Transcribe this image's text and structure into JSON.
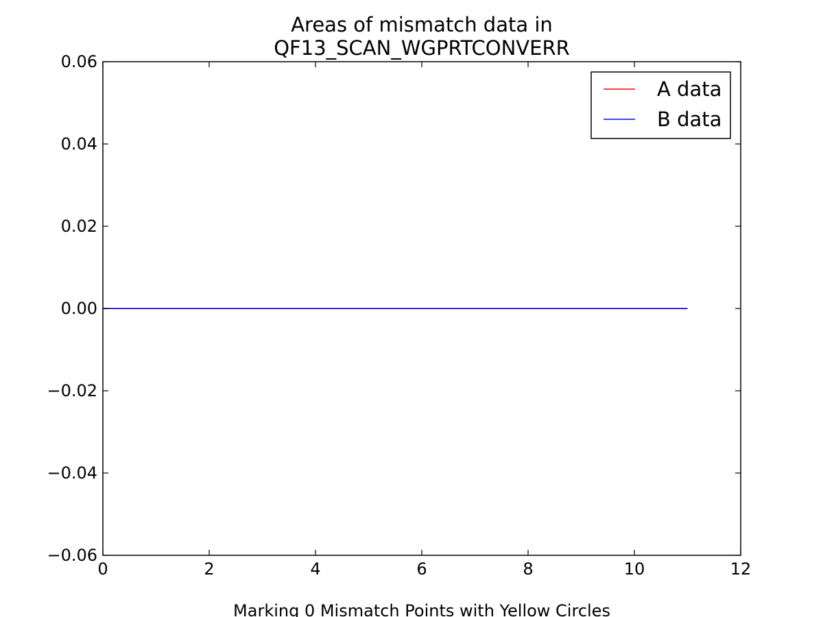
{
  "chart_data": {
    "type": "line",
    "title": [
      "Areas of mismatch data in",
      "QF13_SCAN_WGPRTCONVERR"
    ],
    "xlabel": "Marking 0 Mismatch Points with Yellow Circles",
    "ylabel": "",
    "xlim": [
      0,
      12
    ],
    "ylim": [
      -0.06,
      0.06
    ],
    "xticks": [
      0,
      2,
      4,
      6,
      8,
      10,
      12
    ],
    "xtick_labels": [
      "0",
      "2",
      "4",
      "6",
      "8",
      "10",
      "12"
    ],
    "yticks": [
      0.06,
      0.04,
      0.02,
      0.0,
      -0.02,
      -0.04,
      -0.06
    ],
    "ytick_labels": [
      "0.06",
      "0.04",
      "0.02",
      "0.00",
      "−0.02",
      "−0.04",
      "−0.06"
    ],
    "grid": false,
    "legend_position": "top-right",
    "series": [
      {
        "name": "A data",
        "color": "#ff0000",
        "x": [
          0,
          1,
          2,
          3,
          4,
          5,
          6,
          7,
          8,
          9,
          10,
          11
        ],
        "y": [
          0,
          0,
          0,
          0,
          0,
          0,
          0,
          0,
          0,
          0,
          0,
          0
        ]
      },
      {
        "name": "B data",
        "color": "#0000ff",
        "x": [
          0,
          1,
          2,
          3,
          4,
          5,
          6,
          7,
          8,
          9,
          10,
          11
        ],
        "y": [
          0,
          0,
          0,
          0,
          0,
          0,
          0,
          0,
          0,
          0,
          0,
          0
        ]
      }
    ],
    "mismatch_points": []
  }
}
